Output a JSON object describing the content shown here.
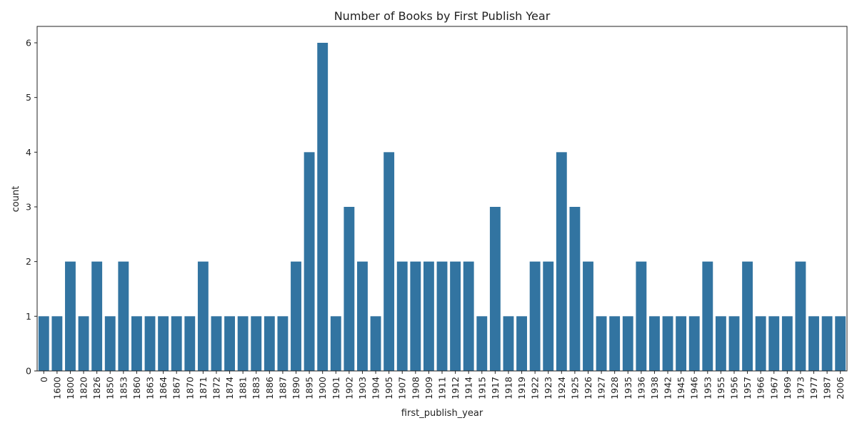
{
  "chart_data": {
    "type": "bar",
    "title": "Number of Books by First Publish Year",
    "xlabel": "first_publish_year",
    "ylabel": "count",
    "ylim": [
      0,
      6.3
    ],
    "yticks": [
      0,
      1,
      2,
      3,
      4,
      5,
      6
    ],
    "grid": false,
    "color": "#3274a1",
    "categories": [
      "0",
      "1600",
      "1800",
      "1820",
      "1826",
      "1850",
      "1853",
      "1860",
      "1863",
      "1864",
      "1867",
      "1870",
      "1871",
      "1872",
      "1874",
      "1881",
      "1883",
      "1886",
      "1887",
      "1890",
      "1895",
      "1900",
      "1901",
      "1902",
      "1903",
      "1904",
      "1905",
      "1907",
      "1908",
      "1909",
      "1911",
      "1912",
      "1914",
      "1915",
      "1917",
      "1918",
      "1919",
      "1922",
      "1923",
      "1924",
      "1925",
      "1926",
      "1927",
      "1928",
      "1935",
      "1936",
      "1938",
      "1942",
      "1945",
      "1946",
      "1953",
      "1955",
      "1956",
      "1957",
      "1966",
      "1967",
      "1969",
      "1973",
      "1977",
      "1987",
      "2006"
    ],
    "values": [
      1,
      1,
      2,
      1,
      2,
      1,
      2,
      1,
      1,
      1,
      1,
      1,
      2,
      1,
      1,
      1,
      1,
      1,
      1,
      2,
      4,
      6,
      1,
      3,
      2,
      1,
      4,
      2,
      2,
      2,
      2,
      2,
      2,
      1,
      3,
      1,
      1,
      2,
      2,
      4,
      3,
      2,
      1,
      1,
      1,
      2,
      1,
      1,
      1,
      1,
      2,
      1,
      1,
      2,
      1,
      1,
      1,
      2,
      1,
      1,
      1
    ]
  }
}
